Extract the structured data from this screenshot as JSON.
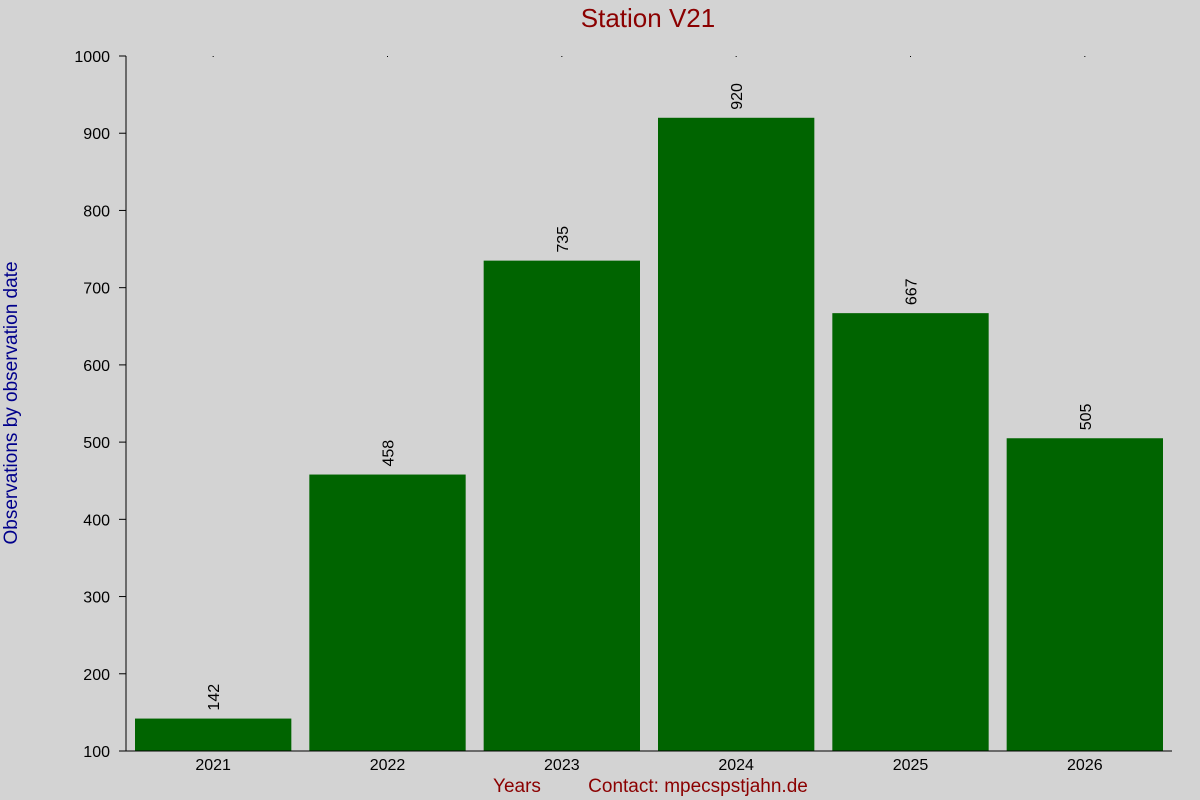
{
  "chart_data": {
    "type": "bar",
    "title": "Station V21",
    "xlabel": "Years",
    "ylabel": "Observations by observation date",
    "contact": "Contact: mpecspstjahn.de",
    "categories": [
      "2021",
      "2022",
      "2023",
      "2024",
      "2025",
      "2026"
    ],
    "values": [
      142,
      458,
      735,
      920,
      667,
      505
    ],
    "value_labels": [
      "142",
      "458",
      "735",
      "920",
      "667",
      "505"
    ],
    "ylim": [
      100,
      1000
    ],
    "yticks": [
      100,
      200,
      300,
      400,
      500,
      600,
      700,
      800,
      900,
      1000
    ],
    "ytick_labels": [
      "100",
      "200",
      "300",
      "400",
      "500",
      "600",
      "700",
      "800",
      "900",
      "1000"
    ],
    "grid": false,
    "legend": "none",
    "colors": {
      "background": "#d3d3d3",
      "bar": "#006400",
      "title": "#8b0000",
      "xlabel": "#8b0000",
      "ylabel": "#00008b",
      "axis": "#000000"
    }
  }
}
